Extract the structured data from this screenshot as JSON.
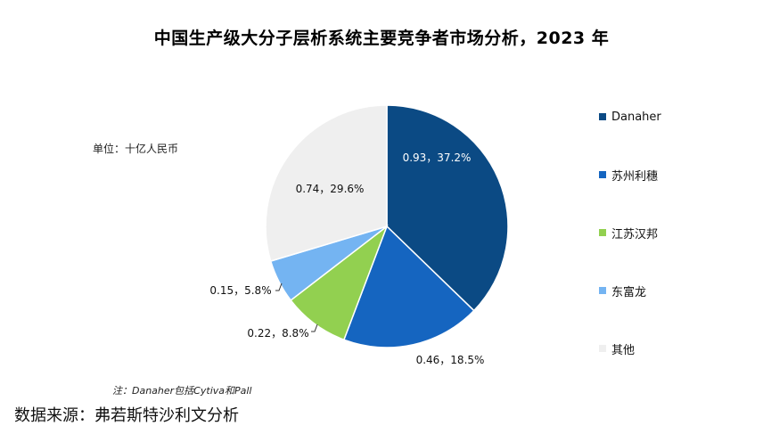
{
  "chart_data": {
    "type": "pie",
    "title": "中国生产级大分子层析系统主要竞争者市场分析，2023 年",
    "unit": "单位：十亿人民币",
    "note": "注：Danaher包括Cytiva和Pall",
    "source": "数据来源：弗若斯特沙利文分析",
    "legend_position": "right",
    "slices": [
      {
        "name": "Danaher",
        "value": 0.93,
        "percent": 37.2,
        "label": "0.93，37.2%",
        "color": "#0b4a84"
      },
      {
        "name": "苏州利穗",
        "value": 0.46,
        "percent": 18.5,
        "label": "0.46，18.5%",
        "color": "#1565c0"
      },
      {
        "name": "江苏汉邦",
        "value": 0.22,
        "percent": 8.8,
        "label": "0.22，8.8%",
        "color": "#92d050"
      },
      {
        "name": "东富龙",
        "value": 0.15,
        "percent": 5.8,
        "label": "0.15，5.8%",
        "color": "#74b4f2"
      },
      {
        "name": "其他",
        "value": 0.74,
        "percent": 29.6,
        "label": "0.74，29.6%",
        "color": "#efefef"
      }
    ]
  }
}
